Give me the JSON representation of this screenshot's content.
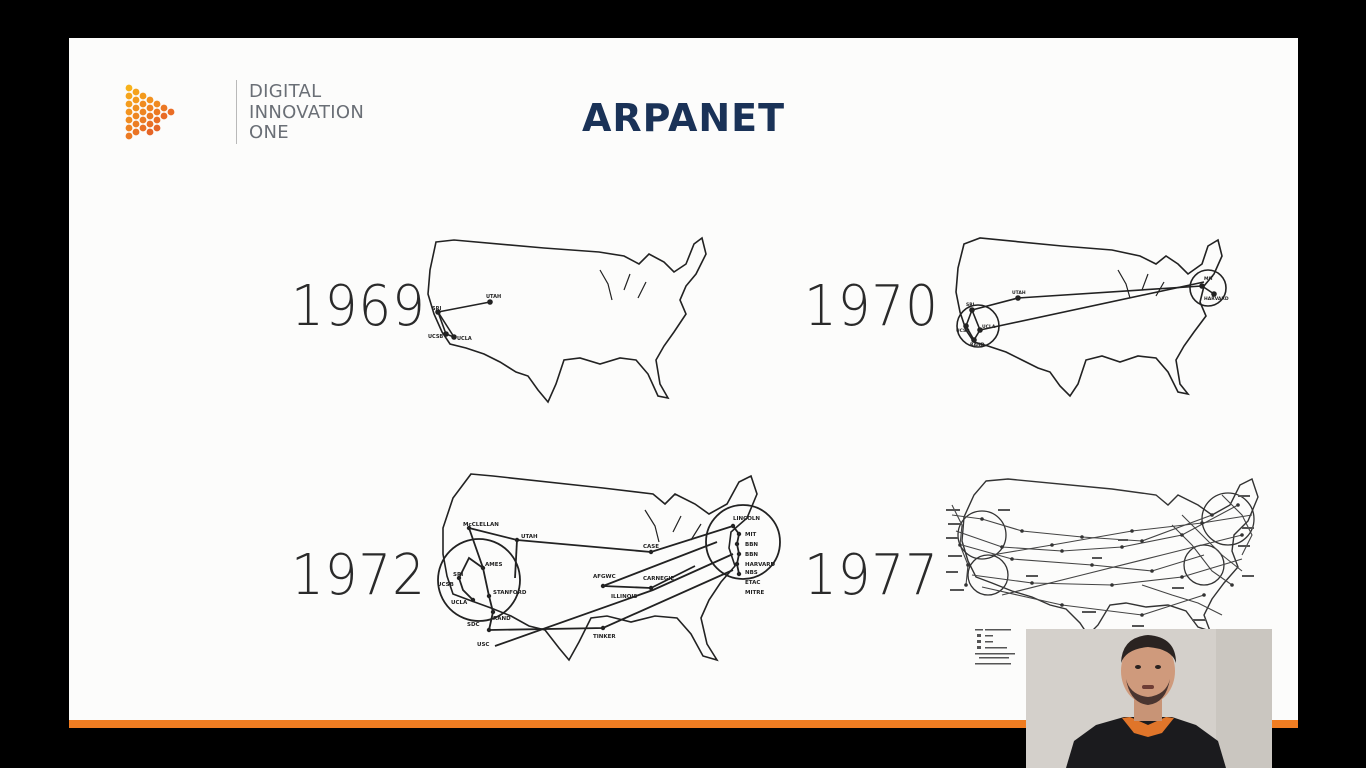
{
  "logo": {
    "line1": "DIGITAL",
    "line2": "INNOVATION",
    "line3": "ONE",
    "dot_colors": [
      "#f7b21a",
      "#f28c1f",
      "#ea5a27"
    ]
  },
  "slide": {
    "title": "ARPANET",
    "accent_color": "#f07d22",
    "title_color": "#1a3257"
  },
  "maps": [
    {
      "year": "1969",
      "nodes": [
        "SRI",
        "UTAH",
        "UCSB",
        "UCLA"
      ]
    },
    {
      "year": "1970",
      "nodes": [
        "SRI",
        "UTAH",
        "UCSB",
        "UCLA",
        "RAND",
        "MIT",
        "HARVARD"
      ]
    },
    {
      "year": "1972",
      "nodes": [
        "McCLELLAN",
        "SRI",
        "AMES",
        "UCSB",
        "UCLA",
        "STANFORD",
        "RAND",
        "SDC",
        "USC",
        "UTAH",
        "AFGWC",
        "CASE",
        "CARNEGIE",
        "ILLINOIS",
        "TINKER",
        "LINCOLN",
        "MIT",
        "BBN",
        "HARVARD",
        "NBS",
        "ETAC",
        "MITRE"
      ]
    },
    {
      "year": "1977",
      "nodes": []
    }
  ],
  "webcam": {
    "label": "presenter-video"
  }
}
